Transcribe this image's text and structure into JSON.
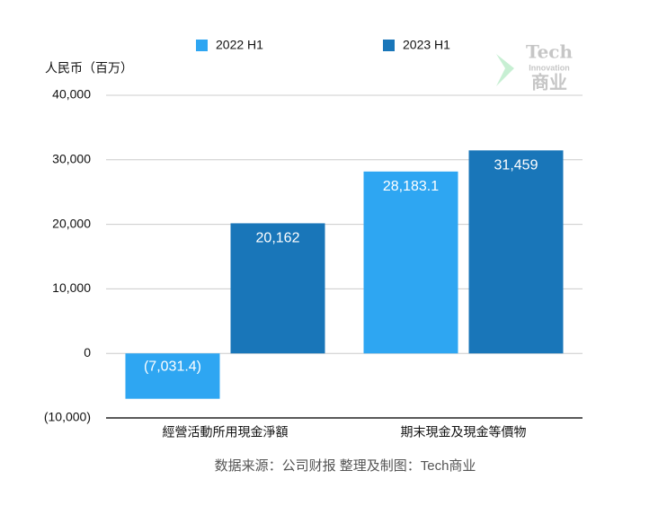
{
  "chart_data": {
    "type": "bar",
    "y_label": "人民币（百万）",
    "categories": [
      "經營活動所用現金淨額",
      "期末現金及現金等價物"
    ],
    "series": [
      {
        "name": "2022 H1",
        "color": "#2ea6f2",
        "values": [
          -7031.4,
          28183.1
        ],
        "value_labels": [
          "(7,031.4)",
          "28,183.1"
        ]
      },
      {
        "name": "2023 H1",
        "color": "#1976b9",
        "values": [
          20162,
          31459
        ],
        "value_labels": [
          "20,162",
          "31,459"
        ]
      }
    ],
    "ylim": [
      -10000,
      40000
    ],
    "yticks": [
      {
        "value": -10000,
        "label": "(10,000)"
      },
      0,
      {
        "value": 10000,
        "label": "10,000"
      },
      {
        "value": 20000,
        "label": "20,000"
      },
      {
        "value": 30000,
        "label": "30,000"
      },
      {
        "value": 40000,
        "label": "40,000"
      }
    ],
    "grid": true,
    "source": "数据来源：公司财报 整理及制图：Tech商业",
    "watermark": {
      "line1": "Tech",
      "line2": "Innovation",
      "line3": "商业"
    }
  }
}
